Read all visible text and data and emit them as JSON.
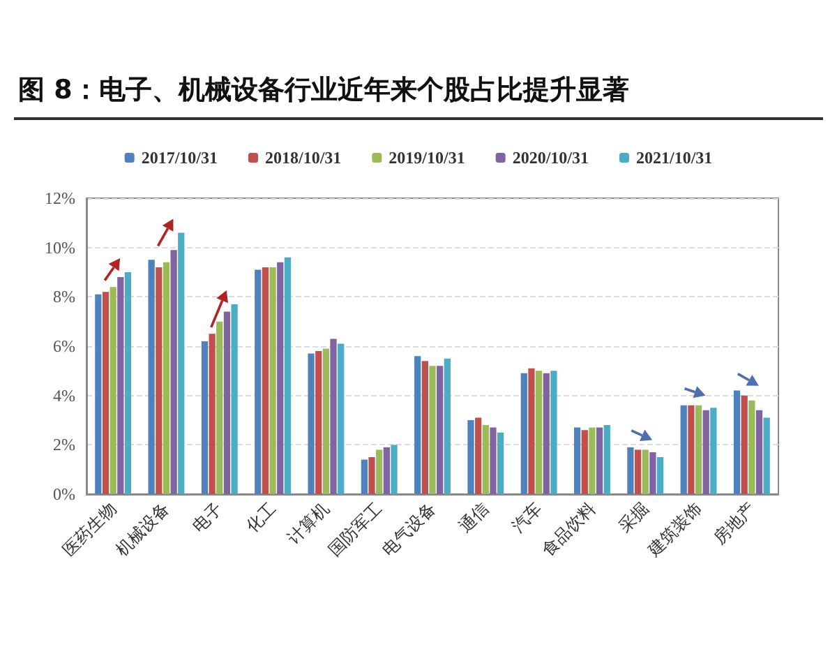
{
  "chart_data": {
    "type": "bar",
    "title": "图 8：电子、机械设备行业近年来个股占比提升显著",
    "categories": [
      "医药生物",
      "机械设备",
      "电子",
      "化工",
      "计算机",
      "国防军工",
      "电气设备",
      "通信",
      "汽车",
      "食品饮料",
      "采掘",
      "建筑装饰",
      "房地产"
    ],
    "series": [
      {
        "name": "2017/10/31",
        "color": "#4f81bd",
        "values": [
          8.1,
          9.5,
          6.2,
          9.1,
          5.7,
          1.4,
          5.6,
          3.0,
          4.9,
          2.7,
          1.9,
          3.6,
          4.2
        ]
      },
      {
        "name": "2018/10/31",
        "color": "#c0504d",
        "values": [
          8.2,
          9.2,
          6.5,
          9.2,
          5.8,
          1.5,
          5.4,
          3.1,
          5.1,
          2.6,
          1.8,
          3.6,
          4.0
        ]
      },
      {
        "name": "2019/10/31",
        "color": "#9bbb59",
        "values": [
          8.4,
          9.4,
          7.0,
          9.2,
          5.9,
          1.8,
          5.2,
          2.8,
          5.0,
          2.7,
          1.8,
          3.6,
          3.8
        ]
      },
      {
        "name": "2020/10/31",
        "color": "#8064a2",
        "values": [
          8.8,
          9.9,
          7.4,
          9.4,
          6.3,
          1.9,
          5.2,
          2.7,
          4.9,
          2.7,
          1.7,
          3.4,
          3.4
        ]
      },
      {
        "name": "2021/10/31",
        "color": "#4bacc6",
        "values": [
          9.0,
          10.6,
          7.7,
          9.6,
          6.1,
          2.0,
          5.5,
          2.5,
          5.0,
          2.8,
          1.5,
          3.5,
          3.1
        ]
      }
    ],
    "ylim": [
      0,
      12
    ],
    "yticks": [
      {
        "value": 0,
        "label": "0%"
      },
      {
        "value": 2,
        "label": "2%"
      },
      {
        "value": 4,
        "label": "4%"
      },
      {
        "value": 6,
        "label": "6%"
      },
      {
        "value": 8,
        "label": "8%"
      },
      {
        "value": 10,
        "label": "10%"
      },
      {
        "value": 12,
        "label": "12%"
      }
    ],
    "grid": "y",
    "legend": "top"
  }
}
